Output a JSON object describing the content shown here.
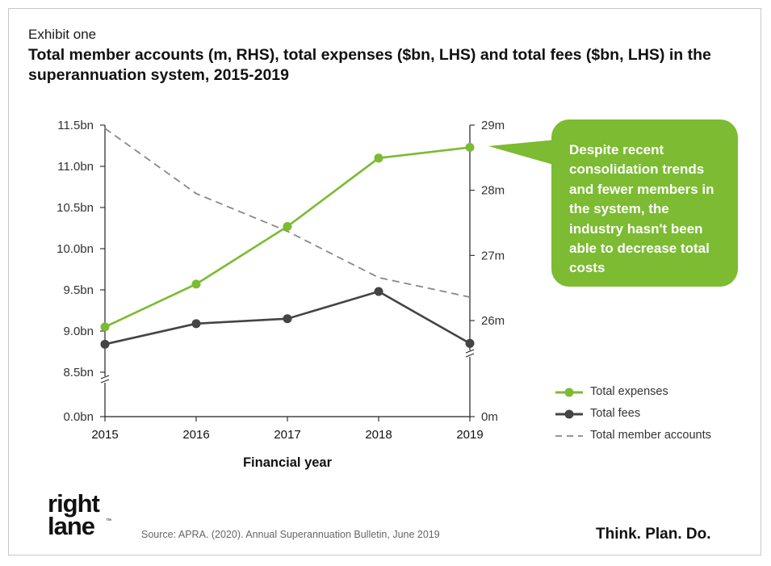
{
  "exhibit_label": "Exhibit one",
  "callout_text": "Despite recent consolidation trends and fewer members in the system, the industry hasn't been able to decrease total costs",
  "source": "Source: APRA. (2020). Annual Superannuation Bulletin, June 2019",
  "tagline": "Think. Plan. Do.",
  "logo": {
    "line1": "right",
    "line2": "lane",
    "trademark": "™"
  },
  "colors": {
    "expenses": "#7cbb32",
    "fees": "#444444",
    "members": "#888888",
    "callout": "#7cbb32"
  },
  "chart_data": {
    "type": "line",
    "title": "Total member accounts (m, RHS), total expenses ($bn, LHS) and total fees ($bn, LHS) in the superannuation system, 2015-2019",
    "xlabel": "Financial year",
    "x": [
      "2015",
      "2016",
      "2017",
      "2018",
      "2019"
    ],
    "y_left": {
      "ticks": [
        "11.5bn",
        "11.0bn",
        "10.5bn",
        "10.0bn",
        "9.5bn",
        "9.0bn",
        "8.5bn",
        "0.0bn"
      ],
      "tick_values": [
        11.5,
        11.0,
        10.5,
        10.0,
        9.5,
        9.0,
        8.5,
        0.0
      ],
      "range": [
        8.5,
        11.5
      ],
      "axis_break": true
    },
    "y_right": {
      "ticks": [
        "29m",
        "28m",
        "27m",
        "26m",
        "0m"
      ],
      "tick_values": [
        29,
        28,
        27,
        26,
        0
      ],
      "range": [
        25.5,
        29
      ],
      "axis_break": true
    },
    "series": [
      {
        "name": "Total expenses",
        "axis": "left",
        "style": "solid-marker",
        "values": [
          9.05,
          9.57,
          10.27,
          11.1,
          11.23
        ]
      },
      {
        "name": "Total fees",
        "axis": "left",
        "style": "solid-marker",
        "values": [
          8.84,
          9.09,
          9.15,
          9.48,
          8.85
        ]
      },
      {
        "name": "Total member accounts",
        "axis": "right",
        "style": "dashed",
        "values": [
          28.95,
          27.95,
          27.37,
          26.66,
          26.36
        ]
      }
    ],
    "legend_position": "right",
    "grid": false
  }
}
